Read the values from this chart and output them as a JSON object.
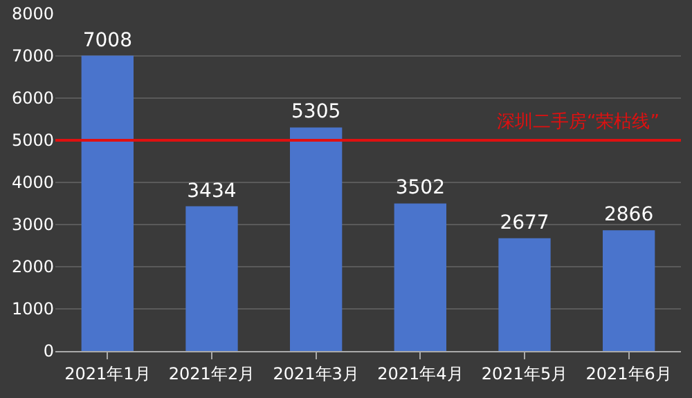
{
  "chart_data": {
    "type": "bar",
    "categories": [
      "2021年1月",
      "2021年2月",
      "2021年3月",
      "2021年4月",
      "2021年5月",
      "2021年6月"
    ],
    "values": [
      7008,
      3434,
      5305,
      3502,
      2677,
      2866
    ],
    "color": "#4a74cc",
    "data_labels": true,
    "ylim": [
      0,
      8000
    ],
    "yticks": [
      0,
      1000,
      2000,
      3000,
      4000,
      5000,
      6000,
      7000,
      8000
    ],
    "grid": "y",
    "ref_lines": [
      {
        "axis": "y",
        "value": 5000,
        "label": "深圳二手房“荣枯线”",
        "color": "#e01010"
      }
    ]
  }
}
